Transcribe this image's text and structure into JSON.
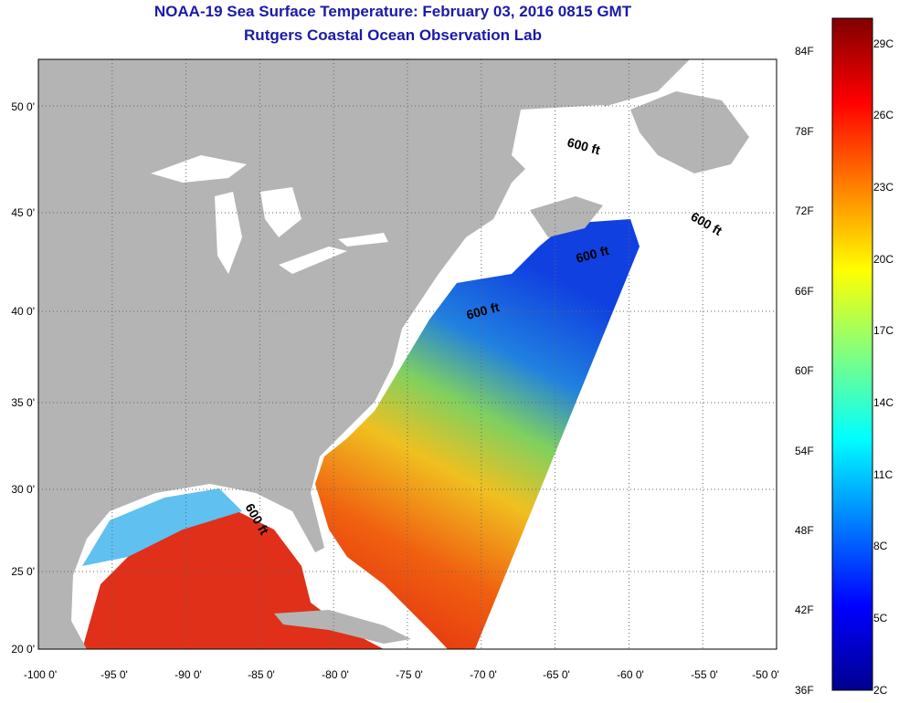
{
  "header": {
    "title": "NOAA-19 Sea Surface Temperature:  February 03, 2016 0815 GMT",
    "subtitle": "Rutgers Coastal Ocean Observation Lab"
  },
  "map": {
    "lon_range": [
      -100,
      -50
    ],
    "lat_range": [
      20,
      52
    ],
    "x_ticks": [
      "-100 0'",
      "-95 0'",
      "-90 0'",
      "-85 0'",
      "-80 0'",
      "-75 0'",
      "-70 0'",
      "-65 0'",
      "-60 0'",
      "-55 0'",
      "-50 0'"
    ],
    "y_ticks": [
      "20 0'",
      "25 0'",
      "30 0'",
      "35 0'",
      "40 0'",
      "45 0'",
      "50 0'"
    ],
    "isobath_labels": [
      "600 ft",
      "600 ft",
      "600 ft",
      "600 ft",
      "600 ft"
    ],
    "colors": {
      "land": "#b4b4b4",
      "no_data": "#ffffff",
      "grid": "#666666"
    }
  },
  "colorbar": {
    "fahrenheit_labels": [
      "84F",
      "78F",
      "72F",
      "66F",
      "60F",
      "54F",
      "48F",
      "42F",
      "36F"
    ],
    "celsius_labels": [
      "29C",
      "26C",
      "23C",
      "20C",
      "17C",
      "14C",
      "11C",
      "8C",
      "5C",
      "2C"
    ],
    "range_c": [
      2,
      30
    ],
    "colormap": "jet"
  }
}
